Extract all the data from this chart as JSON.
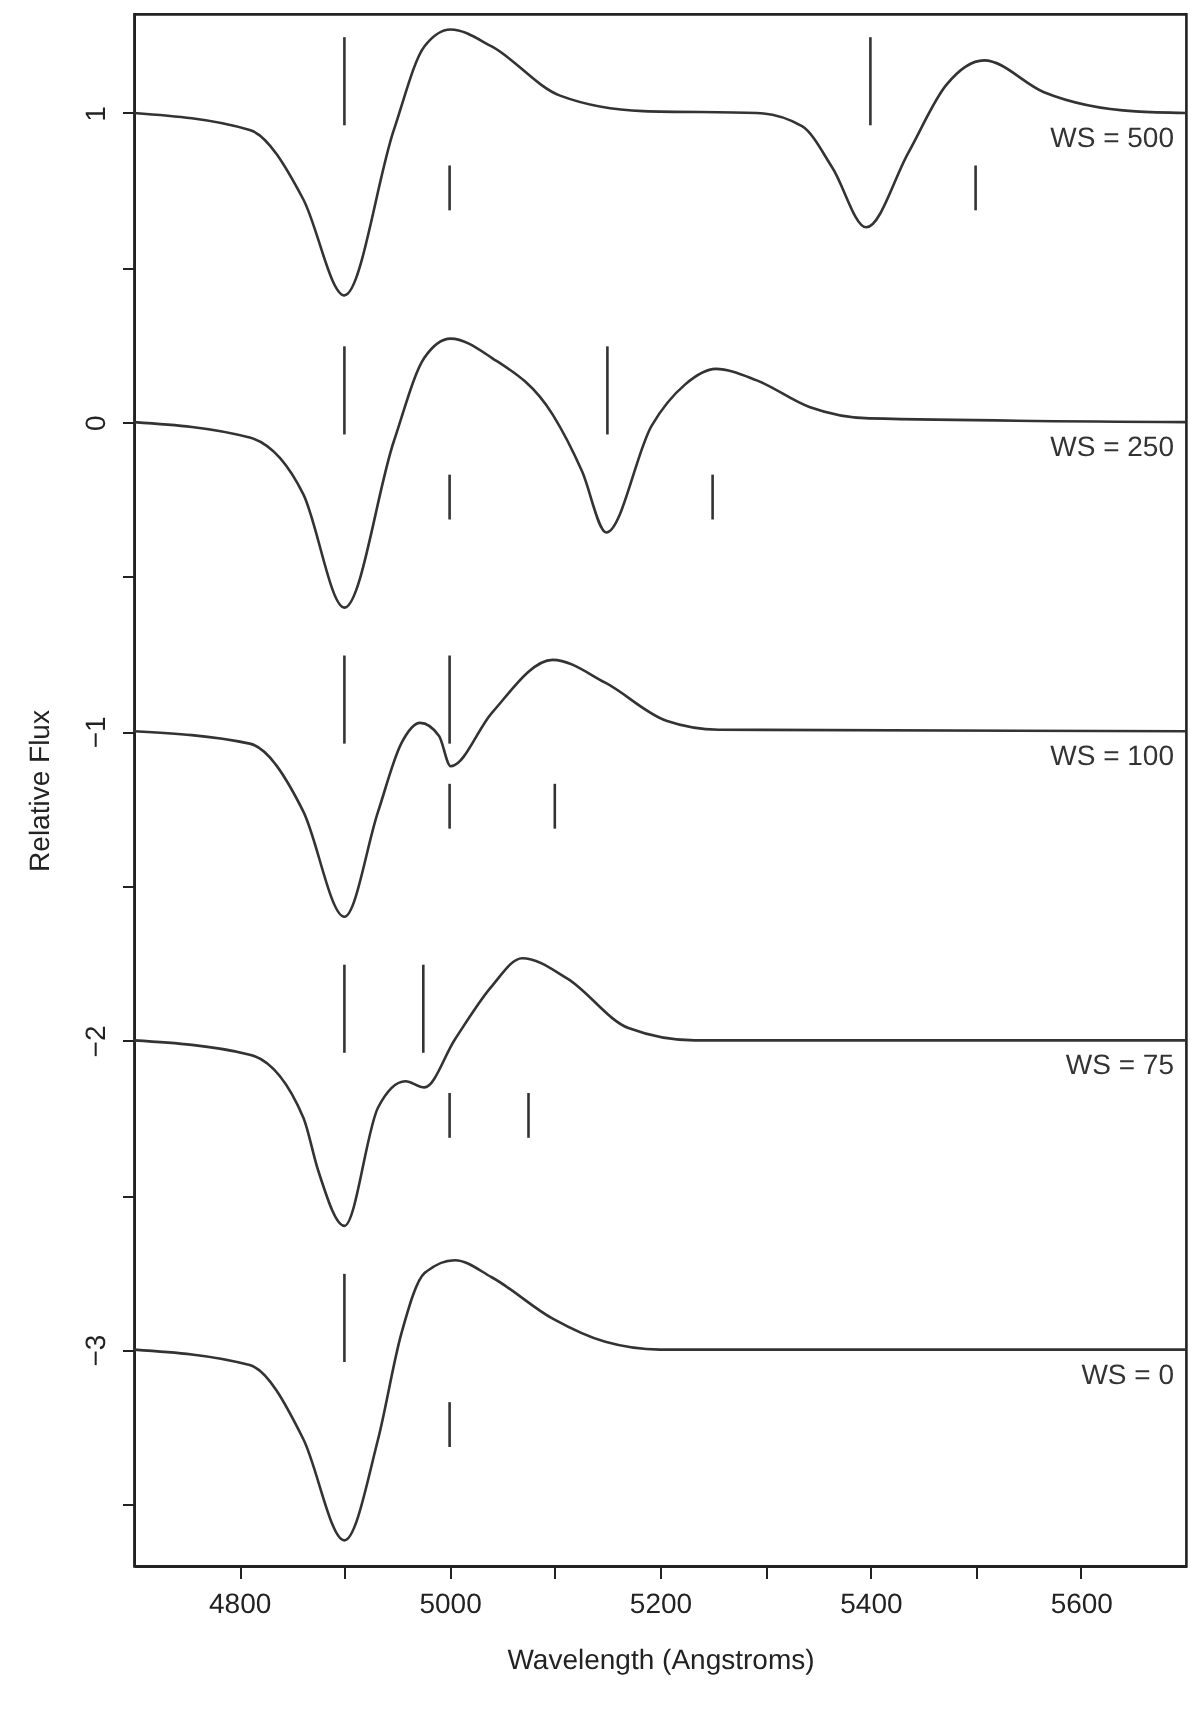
{
  "chart_data": {
    "type": "line",
    "xlabel": "Wavelength (Angstroms)",
    "ylabel": "Relative Flux",
    "xlim": [
      4700,
      5700
    ],
    "ylim": [
      -3.7,
      1.32
    ],
    "xticks": [
      4800,
      {
        "value": 4900,
        "label": null
      },
      5000,
      {
        "value": 5100,
        "label": null
      },
      5200,
      {
        "value": 5300,
        "label": null
      },
      5400,
      {
        "value": 5500,
        "label": null
      },
      5600
    ],
    "yticks": [
      {
        "value": -3.5,
        "label": null
      },
      -3,
      {
        "value": -2.5,
        "label": null
      },
      -2,
      {
        "value": -1.5,
        "label": null
      },
      -1,
      {
        "value": -0.5,
        "label": null
      },
      0,
      {
        "value": 0.5,
        "label": null
      },
      1
    ],
    "grid": false,
    "marker": "none",
    "line_style": "solid",
    "series": [
      {
        "name": "WS = 500",
        "color": "#333333",
        "x": [
          4700,
          4810,
          4861,
          4900,
          4947,
          4976,
          5001,
          5040,
          5105,
          5184,
          5292,
          5335,
          5364,
          5396,
          5436,
          5472,
          5508,
          5565,
          5652,
          5700
        ],
        "values": [
          1,
          0.945,
          0.72,
          0.41,
          0.945,
          1.215,
          1.27,
          1.215,
          1.056,
          1.006,
          1,
          0.957,
          0.822,
          0.63,
          0.871,
          1.09,
          1.17,
          1.067,
          1.005,
          1
        ]
      },
      {
        "name": "WS = 250",
        "color": "#333333",
        "x": [
          4700,
          4810,
          4861,
          4900,
          4947,
          4976,
          5001,
          5040,
          5098,
          5126,
          5149,
          5192,
          5224,
          5253,
          5292,
          5342,
          5399,
          5700
        ],
        "values": [
          0,
          -0.05,
          -0.234,
          -0.6,
          -0.062,
          0.208,
          0.27,
          0.208,
          0.024,
          -0.16,
          -0.357,
          -0.012,
          0.122,
          0.172,
          0.135,
          0.049,
          0.012,
          0
        ]
      },
      {
        "name": "WS = 100",
        "color": "#333333",
        "x": [
          4700,
          4810,
          4861,
          4900,
          4932,
          4954,
          4972,
          4990,
          5001,
          5040,
          5098,
          5148,
          5206,
          5256,
          5700
        ],
        "values": [
          -1,
          -1.04,
          -1.26,
          -1.6,
          -1.26,
          -1.04,
          -0.973,
          -1.015,
          -1.113,
          -0.941,
          -0.769,
          -0.843,
          -0.966,
          -0.995,
          -1
        ]
      },
      {
        "name": "WS = 75",
        "color": "#333333",
        "x": [
          4700,
          4810,
          4861,
          4875,
          4900,
          4932,
          4958,
          4976,
          5005,
          5040,
          5069,
          5112,
          5170,
          5233,
          5700
        ],
        "values": [
          -2,
          -2.046,
          -2.25,
          -2.42,
          -2.6,
          -2.217,
          -2.132,
          -2.152,
          -1.997,
          -1.825,
          -1.734,
          -1.8,
          -1.96,
          -2,
          -2
        ]
      },
      {
        "name": "WS = 0",
        "color": "#333333",
        "x": [
          4700,
          4810,
          4861,
          4900,
          4932,
          4954,
          4976,
          5005,
          5040,
          5098,
          5148,
          5200,
          5700
        ],
        "values": [
          -3,
          -3.05,
          -3.29,
          -3.617,
          -3.29,
          -2.95,
          -2.753,
          -2.711,
          -2.766,
          -2.9,
          -2.975,
          -3,
          -3
        ]
      },
      {
        "color": "#333333",
        "x": [
          4900,
          4900
        ],
        "values": [
          0.96,
          1.245
        ]
      },
      {
        "color": "#333333",
        "x": [
          5400,
          5400
        ],
        "values": [
          0.96,
          1.245
        ]
      },
      {
        "color": "#333333",
        "x": [
          5000,
          5000
        ],
        "values": [
          0.83,
          0.685
        ]
      },
      {
        "color": "#333333",
        "x": [
          5500,
          5500
        ],
        "values": [
          0.83,
          0.685
        ]
      },
      {
        "color": "#333333",
        "x": [
          4900,
          4900
        ],
        "values": [
          -0.04,
          0.245
        ]
      },
      {
        "color": "#333333",
        "x": [
          5150,
          5150
        ],
        "values": [
          -0.04,
          0.245
        ]
      },
      {
        "color": "#333333",
        "x": [
          5000,
          5000
        ],
        "values": [
          -0.17,
          -0.315
        ]
      },
      {
        "color": "#333333",
        "x": [
          5250,
          5250
        ],
        "values": [
          -0.17,
          -0.315
        ]
      },
      {
        "color": "#333333",
        "x": [
          4900,
          4900
        ],
        "values": [
          -1.04,
          -0.755
        ]
      },
      {
        "color": "#333333",
        "x": [
          5000,
          5000
        ],
        "values": [
          -1.04,
          -0.755
        ]
      },
      {
        "color": "#333333",
        "x": [
          5000,
          5000
        ],
        "values": [
          -1.17,
          -1.315
        ]
      },
      {
        "color": "#333333",
        "x": [
          5100,
          5100
        ],
        "values": [
          -1.17,
          -1.315
        ]
      },
      {
        "color": "#333333",
        "x": [
          4900,
          4900
        ],
        "values": [
          -2.04,
          -1.755
        ]
      },
      {
        "color": "#333333",
        "x": [
          4975,
          4975
        ],
        "values": [
          -2.04,
          -1.755
        ]
      },
      {
        "color": "#333333",
        "x": [
          5000,
          5000
        ],
        "values": [
          -2.17,
          -2.315
        ]
      },
      {
        "color": "#333333",
        "x": [
          5075,
          5075
        ],
        "values": [
          -2.17,
          -2.315
        ]
      },
      {
        "color": "#333333",
        "x": [
          4900,
          4900
        ],
        "values": [
          -3.04,
          -2.755
        ]
      },
      {
        "color": "#333333",
        "x": [
          5000,
          5000
        ],
        "values": [
          -3.17,
          -3.315
        ]
      }
    ]
  }
}
